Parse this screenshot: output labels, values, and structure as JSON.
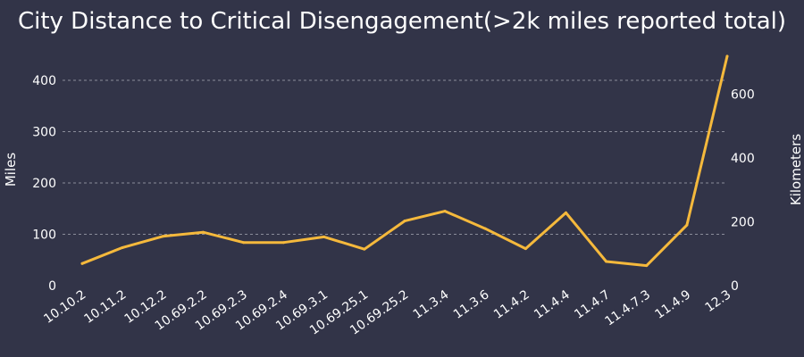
{
  "chart_data": {
    "type": "line",
    "title": "City Distance to Critical Disengagement(>2k miles reported total)",
    "categories": [
      "10.10.2",
      "10.11.2",
      "10.12.2",
      "10.69.2.2",
      "10.69.2.3",
      "10.69.2.4",
      "10.69.3.1",
      "10.69.25.1",
      "10.69.25.2",
      "11.3.4",
      "11.3.6",
      "11.4.2",
      "11.4.4",
      "11.4.7",
      "11.4.7.3",
      "11.4.9",
      "12.3"
    ],
    "series": [
      {
        "values": [
          43,
          74,
          96,
          104,
          84,
          84,
          95,
          71,
          126,
          145,
          111,
          72,
          142,
          47,
          39,
          118,
          447
        ]
      }
    ],
    "ylabel": "Miles",
    "y2label": "Kilometers",
    "yticks": [
      0,
      100,
      200,
      300,
      400
    ],
    "y2ticks": [
      0,
      200,
      400,
      600
    ],
    "ylim": [
      0,
      460
    ],
    "grid": true,
    "colors": {
      "background": "#323448",
      "line": "#f5b93c",
      "text": "#ffffff",
      "grid": "#8a8c9a"
    }
  }
}
